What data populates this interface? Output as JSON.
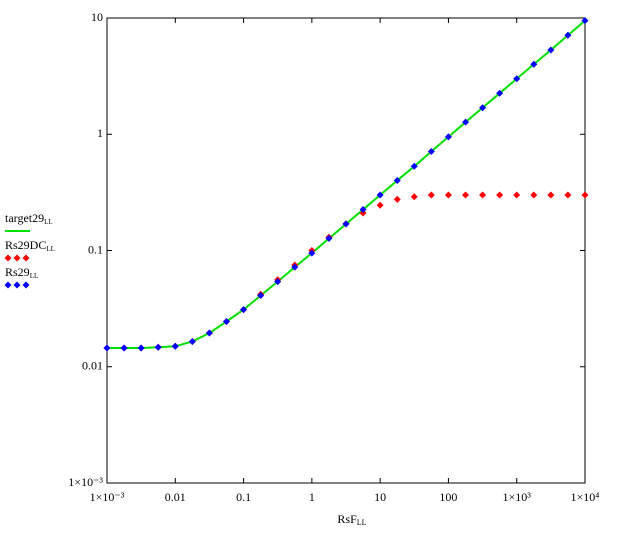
{
  "chart_data": {
    "type": "line",
    "xlabel": "RsF",
    "xlabel_subscript": "LL",
    "log_x": true,
    "log_y": true,
    "x": [
      0.001,
      0.00178,
      0.00316,
      0.00562,
      0.01,
      0.0178,
      0.0316,
      0.0562,
      0.1,
      0.178,
      0.316,
      0.562,
      1,
      1.78,
      3.16,
      5.62,
      10,
      17.8,
      31.6,
      56.2,
      100,
      178,
      316,
      562,
      1000,
      1780,
      3160,
      5620,
      10000
    ],
    "series": [
      {
        "name": "target29",
        "subscript": "LL",
        "color": "#00e000",
        "style": "line",
        "values": [
          0.0145,
          0.0145,
          0.0145,
          0.0147,
          0.015,
          0.0165,
          0.0195,
          0.0245,
          0.031,
          0.041,
          0.054,
          0.072,
          0.095,
          0.127,
          0.169,
          0.225,
          0.3,
          0.4,
          0.53,
          0.71,
          0.95,
          1.27,
          1.69,
          2.25,
          3.0,
          4.0,
          5.3,
          7.1,
          9.5
        ]
      },
      {
        "name": "Rs29DC",
        "subscript": "LL",
        "color": "#ff0000",
        "style": "diamond",
        "values": [
          0.0145,
          0.0145,
          0.0145,
          0.0147,
          0.015,
          0.0165,
          0.0195,
          0.0245,
          0.031,
          0.042,
          0.056,
          0.075,
          0.1,
          0.13,
          0.17,
          0.21,
          0.245,
          0.275,
          0.29,
          0.3,
          0.3,
          0.3,
          0.3,
          0.3,
          0.3,
          0.3,
          0.3,
          0.3,
          0.3
        ]
      },
      {
        "name": "Rs29",
        "subscript": "LL",
        "color": "#0000ff",
        "style": "diamond",
        "values": [
          0.0145,
          0.0145,
          0.0145,
          0.0147,
          0.015,
          0.0165,
          0.0195,
          0.0245,
          0.031,
          0.041,
          0.054,
          0.072,
          0.095,
          0.127,
          0.169,
          0.225,
          0.3,
          0.4,
          0.53,
          0.71,
          0.95,
          1.27,
          1.69,
          2.25,
          3.0,
          4.0,
          5.3,
          7.1,
          9.5
        ]
      }
    ],
    "xlim": [
      0.001,
      10000
    ],
    "ylim": [
      0.001,
      10
    ],
    "xticks": [
      {
        "value": 0.001,
        "label": "1×10⁻³"
      },
      0.01,
      0.1,
      1,
      10,
      100,
      {
        "value": 1000,
        "label": "1×10³"
      },
      {
        "value": 10000,
        "label": "1×10⁴"
      }
    ],
    "yticks": [
      {
        "value": 0.001,
        "label": "1×10⁻³"
      },
      0.01,
      0.1,
      1,
      10
    ]
  }
}
